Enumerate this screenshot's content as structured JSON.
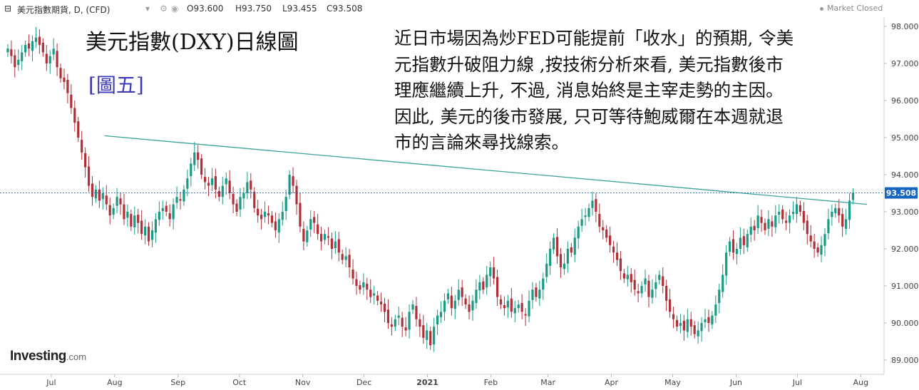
{
  "header": {
    "symbol": "美元指數期貨, D, (CFD)",
    "open": "O93.600",
    "high": "H93.750",
    "low": "L93.455",
    "close": "C93.508",
    "status": "Market Closed"
  },
  "overlay": {
    "title": "美元指數(DXY)日線圖",
    "figure_tag": "[圖五]",
    "commentary": [
      "近日市場因為炒FED可能提前「收水」的預期, 令美",
      "元指數升破阻力線 ,按技術分析來看, 美元指數後市",
      "理應繼續上升, 不過, 消息始終是主宰走勢的主因。",
      "因此, 美元的後市發展, 只可等待鮑威爾在本週就退",
      "市的言論來尋找線索。"
    ]
  },
  "logo": {
    "brand": "Investing",
    "suffix": ".com"
  },
  "colors": {
    "up": "#1a9a86",
    "down": "#b03038",
    "trendline": "#3aa39a",
    "last_price": "#1565c0"
  },
  "chart_data": {
    "type": "candlestick",
    "y_ticks": [
      "98.000",
      "97.000",
      "96.000",
      "95.000",
      "94.000",
      "93.000",
      "92.000",
      "91.000",
      "90.000",
      "89.000"
    ],
    "y_tick_values": [
      98,
      97,
      96,
      95,
      94,
      93,
      92,
      91,
      90,
      89
    ],
    "ylim": [
      88.8,
      98.6
    ],
    "x_labels": [
      {
        "label": "Jul",
        "date": "2020-07"
      },
      {
        "label": "Aug",
        "date": "2020-08"
      },
      {
        "label": "Sep",
        "date": "2020-09"
      },
      {
        "label": "Oct",
        "date": "2020-10"
      },
      {
        "label": "Nov",
        "date": "2020-11"
      },
      {
        "label": "Dec",
        "date": "2020-12"
      },
      {
        "label": "2021",
        "date": "2021-01"
      },
      {
        "label": "Feb",
        "date": "2021-02"
      },
      {
        "label": "Mar",
        "date": "2021-03"
      },
      {
        "label": "Apr",
        "date": "2021-04"
      },
      {
        "label": "May",
        "date": "2021-05"
      },
      {
        "label": "Jun",
        "date": "2021-06"
      },
      {
        "label": "Jul",
        "date": "2021-07"
      },
      {
        "label": "Aug",
        "date": "2021-08"
      }
    ],
    "last_price": 93.508,
    "last_price_label": "93.508",
    "trendline": {
      "from_date": "2020-08-10",
      "from_value": 95.05,
      "to_date": "2021-08-18",
      "to_value": 93.2
    },
    "series_summary": "DXY daily candles, late Jun 2020 to mid Aug 2021",
    "closes": [
      97.4,
      97.2,
      96.9,
      97.1,
      97.3,
      97.5,
      97.4,
      97.6,
      97.7,
      97.5,
      97.3,
      97.0,
      97.2,
      97.4,
      96.9,
      96.6,
      96.5,
      96.2,
      95.8,
      95.4,
      95.0,
      94.6,
      94.2,
      93.7,
      93.4,
      93.6,
      93.3,
      93.5,
      93.2,
      92.9,
      93.1,
      93.4,
      93.2,
      92.8,
      93.0,
      92.6,
      92.9,
      92.7,
      92.4,
      92.6,
      92.2,
      92.5,
      92.8,
      93.0,
      93.1,
      93.0,
      92.8,
      93.2,
      93.4,
      93.3,
      93.6,
      93.9,
      94.3,
      94.6,
      94.4,
      94.0,
      93.8,
      93.7,
      93.9,
      93.6,
      93.4,
      93.7,
      93.9,
      93.5,
      93.2,
      93.0,
      93.4,
      93.5,
      93.8,
      93.6,
      93.1,
      92.9,
      92.8,
      93.0,
      92.9,
      92.7,
      92.5,
      92.8,
      93.0,
      93.4,
      94.0,
      93.7,
      93.2,
      92.6,
      92.2,
      92.5,
      92.8,
      92.7,
      92.4,
      92.2,
      92.4,
      92.3,
      92.0,
      92.2,
      91.9,
      91.7,
      91.8,
      91.5,
      91.2,
      91.0,
      90.9,
      91.1,
      90.9,
      90.7,
      90.8,
      90.6,
      90.5,
      90.3,
      90.0,
      89.9,
      90.1,
      90.2,
      89.9,
      89.8,
      90.3,
      90.5,
      90.1,
      89.9,
      89.6,
      89.8,
      89.4,
      89.9,
      90.2,
      90.3,
      90.6,
      90.8,
      90.4,
      90.6,
      90.9,
      90.7,
      90.5,
      90.3,
      90.6,
      90.9,
      91.1,
      90.9,
      91.3,
      91.5,
      91.2,
      90.7,
      90.5,
      90.4,
      90.6,
      90.3,
      90.4,
      90.5,
      90.3,
      90.2,
      90.6,
      90.9,
      90.7,
      90.9,
      91.2,
      91.6,
      92.0,
      92.3,
      91.8,
      91.5,
      91.6,
      92.0,
      91.9,
      92.3,
      92.6,
      92.8,
      92.9,
      93.1,
      93.3,
      93.0,
      92.6,
      92.5,
      92.3,
      92.1,
      91.9,
      91.7,
      91.4,
      91.2,
      91.3,
      91.1,
      90.9,
      90.8,
      91.0,
      91.2,
      90.7,
      90.9,
      91.1,
      91.3,
      91.0,
      90.6,
      90.3,
      90.1,
      89.9,
      90.0,
      89.8,
      90.1,
      89.9,
      89.7,
      89.8,
      90.0,
      90.1,
      90.0,
      90.2,
      90.5,
      90.9,
      91.3,
      91.9,
      92.2,
      91.9,
      92.0,
      92.3,
      92.1,
      92.4,
      92.6,
      92.5,
      92.9,
      92.7,
      92.5,
      92.8,
      92.6,
      92.9,
      93.0,
      92.8,
      92.7,
      92.9,
      93.0,
      93.2,
      93.0,
      92.7,
      92.4,
      92.2,
      92.0,
      91.9,
      92.1,
      92.4,
      92.8,
      93.0,
      93.1,
      92.9,
      92.6,
      92.8,
      93.3,
      93.508
    ]
  }
}
